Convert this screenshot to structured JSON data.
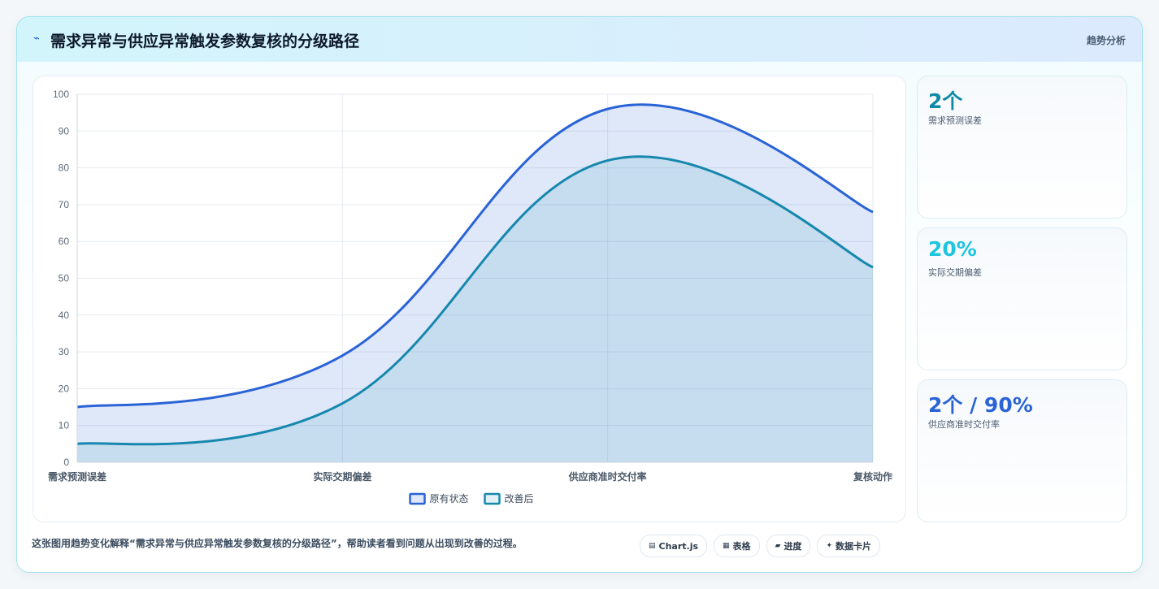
{
  "header": {
    "title": "需求异常与供应异常触发参数复核的分级路径",
    "right_label": "趋势分析",
    "icon": "lightning-icon"
  },
  "stats": [
    {
      "value": "2个",
      "label": "需求预测误差",
      "color": "#0e8aa6"
    },
    {
      "value": "20%",
      "label": "实际交期偏差",
      "color": "#1ec5df"
    },
    {
      "value": "2个 / 90%",
      "label": "供应商准时交付率",
      "color": "#2a63d6"
    }
  ],
  "caption": "这张图用趋势变化解释“需求异常与供应异常触发参数复核的分级路径”，帮助读者看到问题从出现到改善的过程。",
  "chips": [
    {
      "icon": "chart-icon",
      "glyph": "▤",
      "label": "Chart.js"
    },
    {
      "icon": "table-icon",
      "glyph": "▦",
      "label": "表格"
    },
    {
      "icon": "progress-icon",
      "glyph": "▰",
      "label": "进度"
    },
    {
      "icon": "sparkle-icon",
      "glyph": "✦",
      "label": "数据卡片"
    }
  ],
  "chart_data": {
    "type": "area",
    "categories": [
      "需求预测误差",
      "实际交期偏差",
      "供应商准时交付率",
      "复核动作"
    ],
    "series": [
      {
        "name": "原有状态",
        "values": [
          15,
          29,
          96,
          68
        ],
        "color": "#2a63d6"
      },
      {
        "name": "改善后",
        "values": [
          5,
          16,
          82,
          53
        ],
        "color": "#1688ad"
      }
    ],
    "ylim": [
      0,
      100
    ],
    "yticks": [
      0,
      10,
      20,
      30,
      40,
      50,
      60,
      70,
      80,
      90,
      100
    ],
    "grid": true,
    "legend_position": "bottom"
  }
}
